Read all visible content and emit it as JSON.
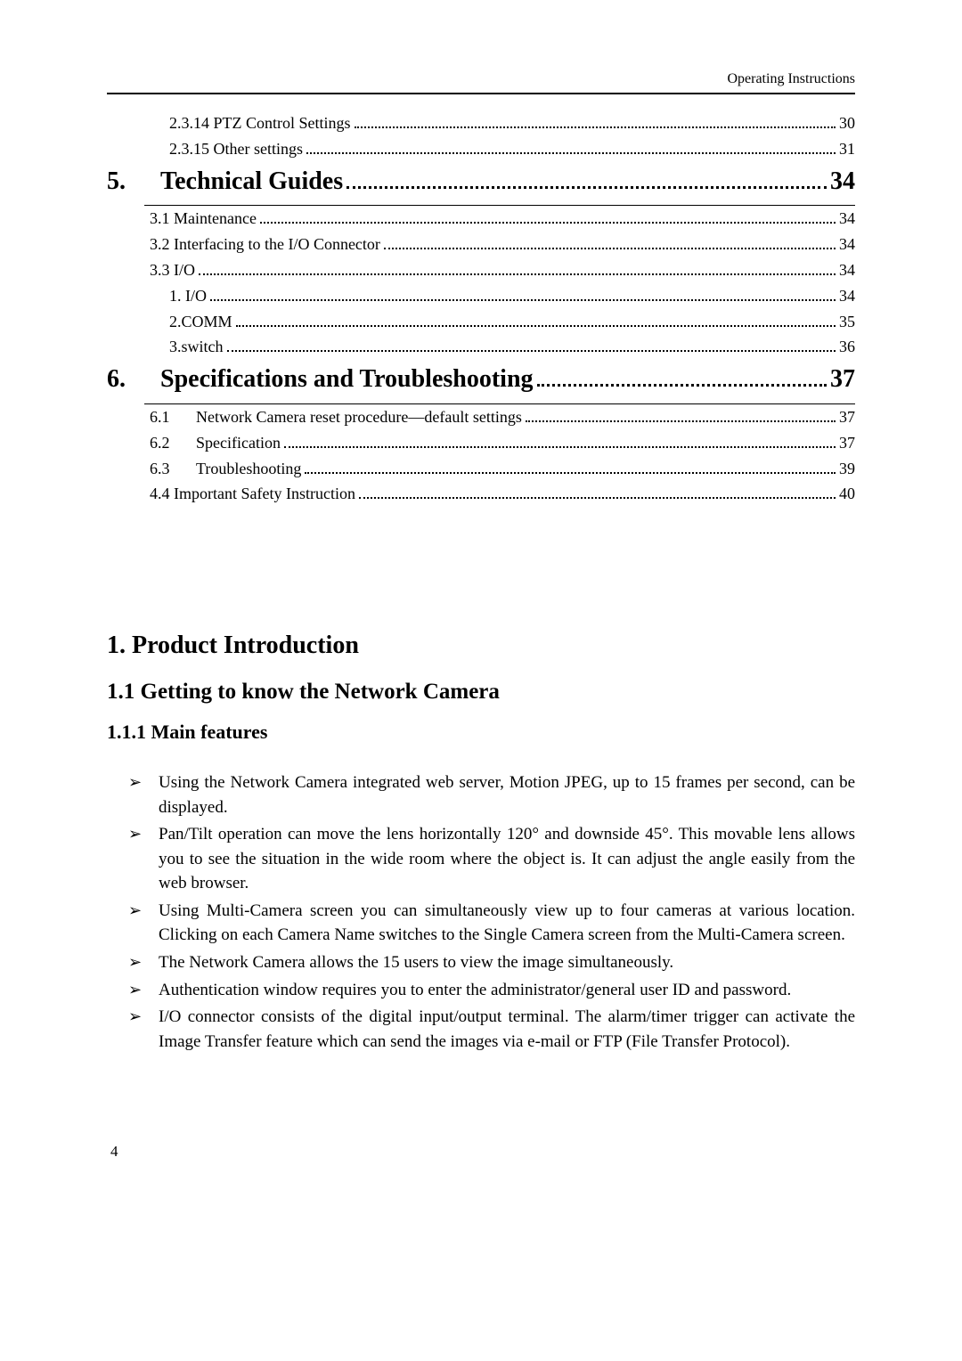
{
  "header": {
    "running": "Operating Instructions"
  },
  "toc": {
    "pre_items": [
      {
        "label": "2.3.14 PTZ Control Settings",
        "page": "30"
      },
      {
        "label": "2.3.15 Other settings",
        "page": "31"
      }
    ],
    "sections": [
      {
        "num": "5.",
        "title": "Technical Guides",
        "page": "34",
        "subs": [
          {
            "label": "3.1 Maintenance",
            "page": "34",
            "indent": "sub"
          },
          {
            "label": "3.2 Interfacing to the I/O Connector",
            "page": "34",
            "indent": "sub"
          },
          {
            "label": "3.3 I/O",
            "page": "34",
            "indent": "sub"
          },
          {
            "label": "1. I/O",
            "page": "34",
            "indent": "subsub"
          },
          {
            "label": "2.COMM",
            "page": "35",
            "indent": "subsub"
          },
          {
            "label": "3.switch",
            "page": "36",
            "indent": "subsub"
          }
        ]
      },
      {
        "num": "6.",
        "title": "Specifications and Troubleshooting",
        "page": "37",
        "subs": [
          {
            "idx": "6.1",
            "label": "Network Camera reset procedure—default settings",
            "page": "37",
            "indent": "idx"
          },
          {
            "idx": "6.2",
            "label": "Specification",
            "page": "37",
            "indent": "idx"
          },
          {
            "idx": "6.3",
            "label": "Troubleshooting",
            "page": "39",
            "indent": "idx"
          },
          {
            "label": "4.4 Important Safety Instruction",
            "page": "40",
            "indent": "sub"
          }
        ]
      }
    ]
  },
  "intro": {
    "h1": "1. Product Introduction",
    "h2": "1.1 Getting to know the Network Camera",
    "h3": "1.1.1 Main features",
    "bullets": [
      "Using the Network Camera integrated web server, Motion JPEG, up to 15 frames per second, can be displayed.",
      "Pan/Tilt operation can move the lens horizontally 120° and downside 45°. This movable lens allows you to see the situation in the wide room where the object is. It can adjust the angle easily from the web browser.",
      "Using Multi-Camera screen you can simultaneously view up to four cameras at various location. Clicking on each Camera Name switches to the Single Camera screen from the Multi-Camera screen.",
      "The Network Camera allows the 15 users to view the image simultaneously.",
      "Authentication window requires you to enter the administrator/general user ID and password.",
      "I/O connector consists of the digital input/output terminal. The alarm/timer trigger can activate the Image Transfer feature which can send the images via e-mail or FTP (File Transfer Protocol)."
    ]
  },
  "footer": {
    "page_number": "4"
  }
}
